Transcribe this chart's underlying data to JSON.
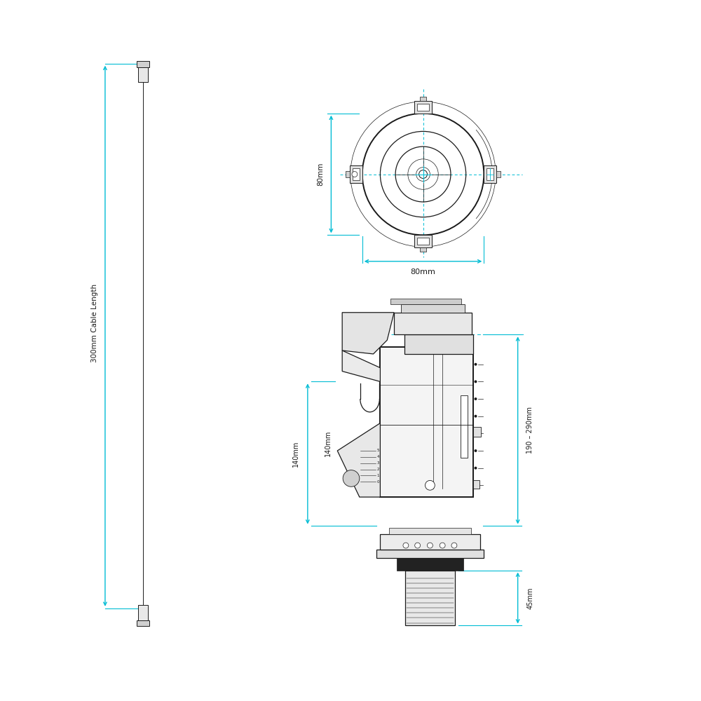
{
  "bg_color": "#ffffff",
  "line_color": "#1a1a1a",
  "dim_color": "#00bcd4",
  "labels": {
    "cable_length": "300mm Cable Length",
    "top_width": "80mm",
    "top_height": "80mm",
    "side_main": "190 – 290mm",
    "side_sub1": "140mm",
    "side_sub2": "140mm",
    "side_bottom": "45mm"
  },
  "figsize": [
    10,
    10
  ],
  "dpi": 100
}
